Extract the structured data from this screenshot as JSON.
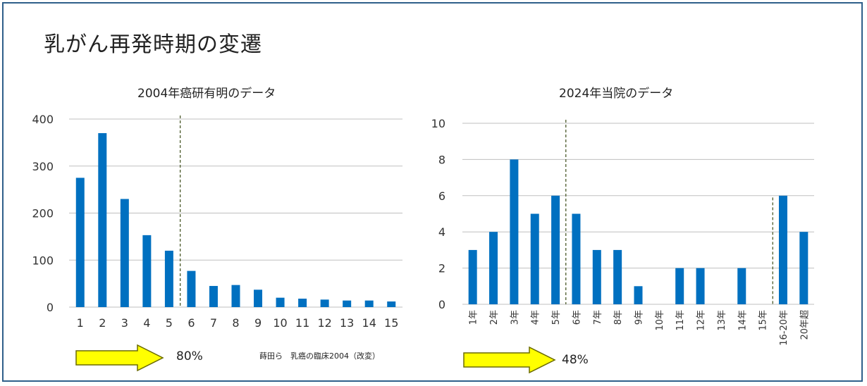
{
  "slide": {
    "title": "乳がん再発時期の変遷",
    "left_subtitle": "2004年癌研有明のデータ",
    "right_subtitle": "2024年当院のデータ",
    "left_percent": "80%",
    "right_percent": "48%",
    "source": "蒔田ら　乳癌の臨床2004（改変）",
    "arrow_color": "#ffff00",
    "bar_color": "#0070c0"
  },
  "chart_data": [
    {
      "type": "bar",
      "title": "2004年癌研有明のデータ",
      "categories": [
        "1",
        "2",
        "3",
        "4",
        "5",
        "6",
        "7",
        "8",
        "9",
        "10",
        "11",
        "12",
        "13",
        "14",
        "15"
      ],
      "values": [
        275,
        370,
        230,
        153,
        120,
        77,
        45,
        47,
        37,
        20,
        18,
        16,
        14,
        14,
        12
      ],
      "ylim": [
        0,
        400
      ],
      "yticks": [
        0,
        100,
        200,
        300,
        400
      ],
      "grid": true,
      "dashed_line_after_category": "5"
    },
    {
      "type": "bar",
      "title": "2024年当院のデータ",
      "categories": [
        "1年",
        "2年",
        "3年",
        "4年",
        "5年",
        "6年",
        "7年",
        "8年",
        "9年",
        "10年",
        "11年",
        "12年",
        "13年",
        "14年",
        "15年",
        "16-20年",
        "20年超"
      ],
      "values": [
        3,
        4,
        8,
        5,
        6,
        5,
        3,
        3,
        1,
        0,
        2,
        2,
        0,
        2,
        0,
        6,
        4
      ],
      "ylim": [
        0,
        10
      ],
      "yticks": [
        0,
        2,
        4,
        6,
        8,
        10
      ],
      "grid": true,
      "dashed_lines_after_categories": [
        "5年",
        "15年"
      ]
    }
  ]
}
